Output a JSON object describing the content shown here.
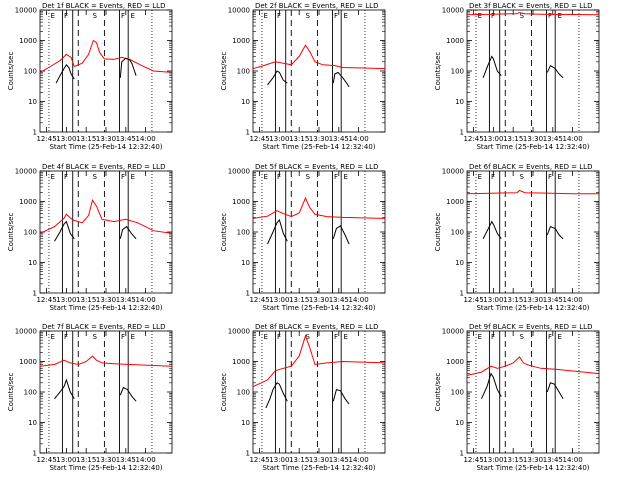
{
  "chart_data": {
    "type": "line",
    "ylabel": "Counts/sec",
    "xlabel": "Start Time (25-Feb-14 12:32:40)",
    "ylim": [
      1,
      10000
    ],
    "xlim_minutes": [
      12.667,
      14.333
    ],
    "y_scale": "log",
    "y_tick_labels": [
      "1",
      "10",
      "100",
      "1000",
      "10000"
    ],
    "y_tick_values": [
      1,
      10,
      100,
      1000,
      10000
    ],
    "x_tick_labels": [
      "12:45",
      "13:00",
      "13:15",
      "13:30",
      "13:45",
      "14:00"
    ],
    "x_tick_values": [
      12.75,
      13.0,
      13.25,
      13.5,
      13.75,
      14.0
    ],
    "dotted_lines_h": [
      12.78,
      14.08
    ],
    "solid_lines_h": [
      12.95,
      13.08,
      13.67,
      13.78
    ],
    "dashed_lines_h": [
      13.15,
      13.48
    ],
    "markers": [
      {
        "label": "E",
        "h": 12.8
      },
      {
        "label": "F",
        "h": 12.97
      },
      {
        "label": "S",
        "h": 13.33
      },
      {
        "label": "F",
        "h": 13.69
      },
      {
        "label": "E",
        "h": 13.81
      }
    ],
    "colors": {
      "events": "#000000",
      "lld": "#ff0000"
    },
    "panels": [
      {
        "title": "Det 1f BLACK = Events, RED = LLD",
        "events": {
          "segments": [
            {
              "x": [
                12.87,
                12.92,
                12.97,
                13.0,
                13.03,
                13.06,
                13.09,
                13.1
              ],
              "y": [
                40,
                70,
                120,
                160,
                130,
                80,
                60,
                55
              ]
            },
            {
              "x": [
                13.68,
                13.7,
                13.75,
                13.8,
                13.83,
                13.86,
                13.88
              ],
              "y": [
                60,
                200,
                260,
                230,
                170,
                100,
                70
              ]
            }
          ]
        },
        "lld": {
          "x": [
            12.67,
            12.8,
            12.92,
            13.0,
            13.06,
            13.1,
            13.2,
            13.28,
            13.34,
            13.38,
            13.42,
            13.48,
            13.6,
            13.7,
            13.8,
            13.95,
            14.1,
            14.33
          ],
          "y": [
            90,
            140,
            220,
            350,
            280,
            140,
            180,
            350,
            1000,
            850,
            400,
            250,
            240,
            280,
            240,
            150,
            100,
            90
          ]
        }
      },
      {
        "title": "Det 2f BLACK = Events, RED = LLD",
        "events": {
          "segments": [
            {
              "x": [
                12.85,
                12.92,
                12.97,
                13.0,
                13.05,
                13.1
              ],
              "y": [
                35,
                60,
                100,
                90,
                50,
                40
              ]
            },
            {
              "x": [
                13.68,
                13.7,
                13.74,
                13.8,
                13.85,
                13.88
              ],
              "y": [
                40,
                80,
                90,
                60,
                40,
                30
              ]
            }
          ]
        },
        "lld": {
          "x": [
            12.67,
            12.8,
            12.95,
            13.05,
            13.15,
            13.25,
            13.33,
            13.38,
            13.45,
            13.55,
            13.7,
            13.8,
            14.33
          ],
          "y": [
            120,
            150,
            200,
            180,
            160,
            300,
            700,
            450,
            200,
            160,
            150,
            130,
            120
          ]
        }
      },
      {
        "title": "Det 3f BLACK = Events, RED = LLD",
        "events": {
          "segments": [
            {
              "x": [
                12.87,
                12.93,
                12.98,
                13.0,
                13.05,
                13.1
              ],
              "y": [
                60,
                150,
                300,
                250,
                100,
                70
              ]
            },
            {
              "x": [
                13.68,
                13.72,
                13.78,
                13.83,
                13.88
              ],
              "y": [
                90,
                150,
                120,
                80,
                60
              ]
            }
          ]
        },
        "lld": {
          "x": [
            12.67,
            12.9,
            13.1,
            13.3,
            13.33,
            13.4,
            13.6,
            13.8,
            14.0,
            14.33
          ],
          "y": [
            7000,
            7200,
            7400,
            7600,
            8200,
            7500,
            7300,
            7200,
            7100,
            7000
          ]
        }
      },
      {
        "title": "Det 4f BLACK = Events, RED = LLD",
        "events": {
          "segments": [
            {
              "x": [
                12.85,
                12.92,
                12.97,
                13.0,
                13.05,
                13.1
              ],
              "y": [
                50,
                100,
                180,
                220,
                90,
                60
              ]
            },
            {
              "x": [
                13.68,
                13.71,
                13.76,
                13.82,
                13.88
              ],
              "y": [
                60,
                120,
                150,
                90,
                60
              ]
            }
          ]
        },
        "lld": {
          "x": [
            12.67,
            12.85,
            12.97,
            13.0,
            13.08,
            13.2,
            13.28,
            13.33,
            13.38,
            13.45,
            13.6,
            13.75,
            13.9,
            14.1,
            14.33
          ],
          "y": [
            90,
            150,
            280,
            380,
            250,
            200,
            350,
            1100,
            700,
            260,
            220,
            260,
            200,
            110,
            90
          ]
        }
      },
      {
        "title": "Det 5f BLACK = Events, RED = LLD",
        "events": {
          "segments": [
            {
              "x": [
                12.85,
                12.92,
                12.97,
                13.0,
                13.05,
                13.1
              ],
              "y": [
                40,
                100,
                200,
                250,
                90,
                50
              ]
            },
            {
              "x": [
                13.68,
                13.72,
                13.77,
                13.83,
                13.88
              ],
              "y": [
                60,
                130,
                160,
                80,
                40
              ]
            }
          ]
        },
        "lld": {
          "x": [
            12.67,
            12.85,
            12.97,
            13.05,
            13.15,
            13.25,
            13.33,
            13.38,
            13.45,
            13.6,
            13.8,
            14.33
          ],
          "y": [
            280,
            330,
            500,
            400,
            320,
            420,
            1300,
            650,
            380,
            320,
            300,
            280
          ]
        }
      },
      {
        "title": "Det 6f BLACK = Events, RED = LLD",
        "events": {
          "segments": [
            {
              "x": [
                12.87,
                12.93,
                12.98,
                13.0,
                13.05,
                13.1
              ],
              "y": [
                60,
                120,
                220,
                180,
                90,
                60
              ]
            },
            {
              "x": [
                13.68,
                13.72,
                13.78,
                13.83,
                13.88
              ],
              "y": [
                80,
                150,
                130,
                80,
                60
              ]
            }
          ]
        },
        "lld": {
          "x": [
            12.67,
            12.9,
            13.1,
            13.3,
            13.33,
            13.4,
            13.6,
            13.8,
            14.0,
            14.33
          ],
          "y": [
            1800,
            1850,
            1900,
            1950,
            2300,
            1950,
            1900,
            1850,
            1800,
            1800
          ]
        }
      },
      {
        "title": "Det 7f BLACK = Events, RED = LLD",
        "events": {
          "segments": [
            {
              "x": [
                12.85,
                12.92,
                12.97,
                13.0,
                13.05,
                13.1
              ],
              "y": [
                60,
                100,
                150,
                250,
                100,
                60
              ]
            },
            {
              "x": [
                13.68,
                13.72,
                13.77,
                13.83,
                13.88
              ],
              "y": [
                80,
                140,
                120,
                70,
                50
              ]
            }
          ]
        },
        "lld": {
          "x": [
            12.67,
            12.85,
            12.97,
            13.05,
            13.15,
            13.25,
            13.33,
            13.38,
            13.45,
            13.6,
            13.8,
            14.33
          ],
          "y": [
            700,
            800,
            1100,
            900,
            800,
            1000,
            1500,
            1100,
            900,
            850,
            800,
            700
          ]
        }
      },
      {
        "title": "Det 8f BLACK = Events, RED = LLD",
        "events": {
          "segments": [
            {
              "x": [
                12.83,
                12.88,
                12.92,
                12.97,
                13.0,
                13.05,
                13.1
              ],
              "y": [
                30,
                60,
                120,
                200,
                180,
                90,
                50
              ]
            },
            {
              "x": [
                13.68,
                13.72,
                13.77,
                13.83,
                13.88
              ],
              "y": [
                50,
                120,
                110,
                60,
                40
              ]
            }
          ]
        },
        "lld": {
          "x": [
            12.67,
            12.85,
            12.95,
            13.05,
            13.15,
            13.25,
            13.33,
            13.38,
            13.45,
            13.6,
            13.8,
            14.33
          ],
          "y": [
            150,
            250,
            500,
            600,
            700,
            1500,
            7000,
            3000,
            800,
            900,
            1000,
            900
          ]
        }
      },
      {
        "title": "Det 9f BLACK = Events, RED = LLD",
        "events": {
          "segments": [
            {
              "x": [
                12.85,
                12.92,
                12.97,
                13.0,
                13.05,
                13.1
              ],
              "y": [
                60,
                150,
                400,
                300,
                120,
                70
              ]
            },
            {
              "x": [
                13.68,
                13.72,
                13.77,
                13.83,
                13.88
              ],
              "y": [
                100,
                200,
                180,
                100,
                60
              ]
            }
          ]
        },
        "lld": {
          "x": [
            12.67,
            12.85,
            12.97,
            13.05,
            13.15,
            13.25,
            13.33,
            13.38,
            13.45,
            13.6,
            13.8,
            14.33
          ],
          "y": [
            350,
            450,
            700,
            600,
            700,
            900,
            1400,
            900,
            750,
            600,
            550,
            400
          ]
        }
      }
    ]
  }
}
